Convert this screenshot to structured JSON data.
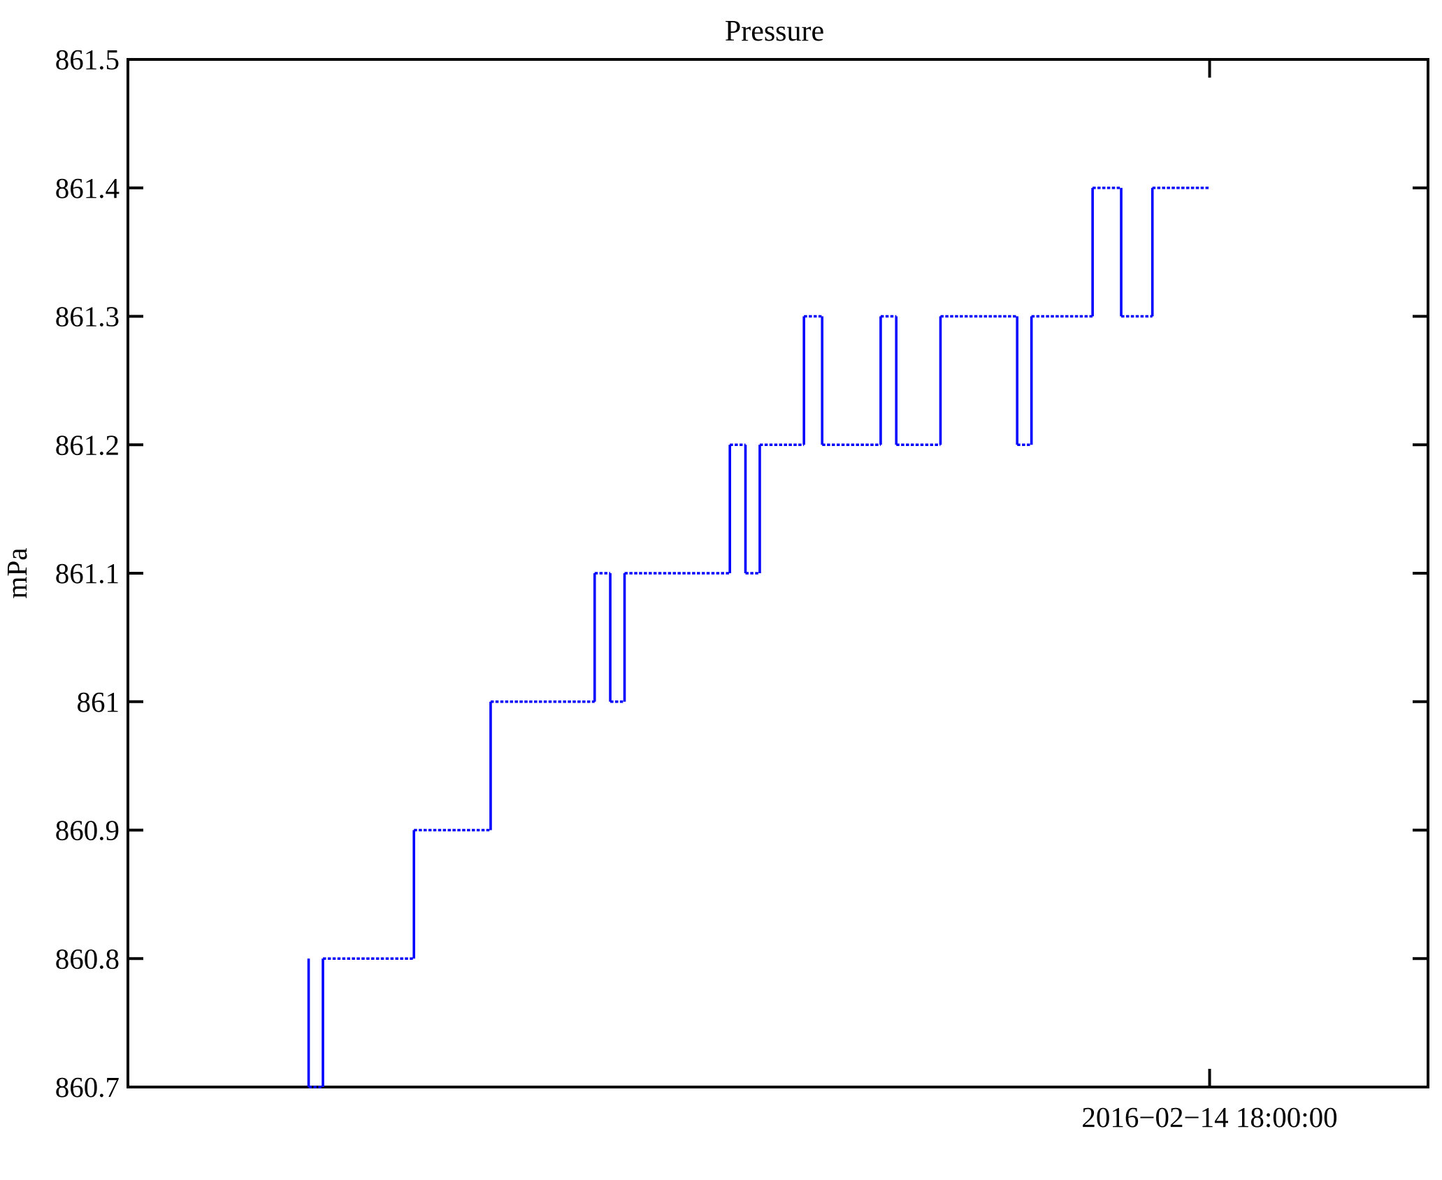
{
  "title": "Pressure",
  "colors": {
    "line": "#0000ff",
    "axis": "#000000",
    "background": "#ffffff",
    "text": "#000000"
  },
  "chart_data": {
    "type": "line",
    "style": "steps",
    "title": "Pressure",
    "xlabel": "",
    "ylabel": "mPa",
    "ylim": [
      860.7,
      861.5
    ],
    "grid": false,
    "legend": "none",
    "yticks": [
      {
        "value": 861.5,
        "label": "861.5"
      },
      {
        "value": 861.4,
        "label": "861.4"
      },
      {
        "value": 861.3,
        "label": "861.3"
      },
      {
        "value": 861.2,
        "label": "861.2"
      },
      {
        "value": 861.1,
        "label": "861.1"
      },
      {
        "value": 861.0,
        "label": "861"
      },
      {
        "value": 860.9,
        "label": "860.9"
      },
      {
        "value": 860.8,
        "label": "860.8"
      },
      {
        "value": 860.7,
        "label": "860.7"
      }
    ],
    "xticks": [
      {
        "label": "2016−02−14 18:00:00",
        "axis_fraction": 0.832
      }
    ],
    "series": [
      {
        "name": "Pressure",
        "unit": "mPa",
        "x_is_fraction_of_axis": true,
        "points": [
          [
            0.139,
            860.8
          ],
          [
            0.139,
            860.7
          ],
          [
            0.15,
            860.7
          ],
          [
            0.15,
            860.8
          ],
          [
            0.22,
            860.8
          ],
          [
            0.22,
            860.9
          ],
          [
            0.279,
            860.9
          ],
          [
            0.279,
            861.0
          ],
          [
            0.359,
            861.0
          ],
          [
            0.359,
            861.1
          ],
          [
            0.371,
            861.1
          ],
          [
            0.371,
            861.0
          ],
          [
            0.382,
            861.0
          ],
          [
            0.382,
            861.1
          ],
          [
            0.463,
            861.1
          ],
          [
            0.463,
            861.2
          ],
          [
            0.475,
            861.2
          ],
          [
            0.475,
            861.1
          ],
          [
            0.486,
            861.1
          ],
          [
            0.486,
            861.2
          ],
          [
            0.52,
            861.2
          ],
          [
            0.52,
            861.3
          ],
          [
            0.534,
            861.3
          ],
          [
            0.534,
            861.2
          ],
          [
            0.579,
            861.2
          ],
          [
            0.579,
            861.3
          ],
          [
            0.591,
            861.3
          ],
          [
            0.591,
            861.2
          ],
          [
            0.625,
            861.2
          ],
          [
            0.625,
            861.3
          ],
          [
            0.684,
            861.3
          ],
          [
            0.684,
            861.2
          ],
          [
            0.695,
            861.2
          ],
          [
            0.695,
            861.3
          ],
          [
            0.742,
            861.3
          ],
          [
            0.742,
            861.4
          ],
          [
            0.764,
            861.4
          ],
          [
            0.764,
            861.3
          ],
          [
            0.788,
            861.3
          ],
          [
            0.788,
            861.4
          ],
          [
            0.832,
            861.4
          ]
        ]
      }
    ]
  }
}
